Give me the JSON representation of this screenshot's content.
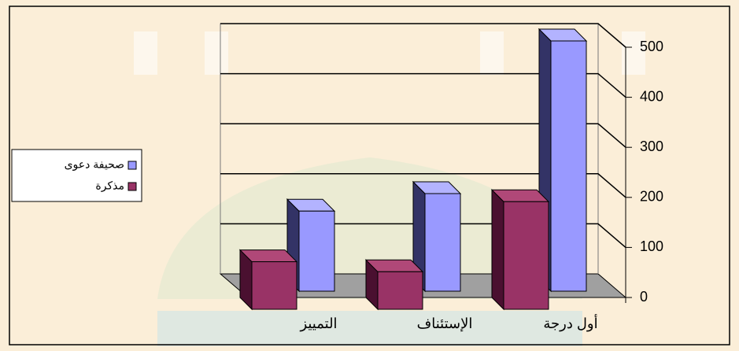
{
  "chart_data": {
    "type": "bar3d",
    "categories": [
      "أول درجة",
      "الإستئناف",
      "التمييز"
    ],
    "series": [
      {
        "name": "صحيفة دعوى",
        "color": "#9999ff",
        "values": [
          500,
          195,
          160
        ]
      },
      {
        "name": "مذكرة",
        "color": "#993366",
        "values": [
          215,
          75,
          95
        ]
      }
    ],
    "ylim": [
      0,
      500
    ],
    "yticks": [
      0,
      100,
      200,
      300,
      400,
      500
    ],
    "grid": true,
    "legend": "left"
  }
}
